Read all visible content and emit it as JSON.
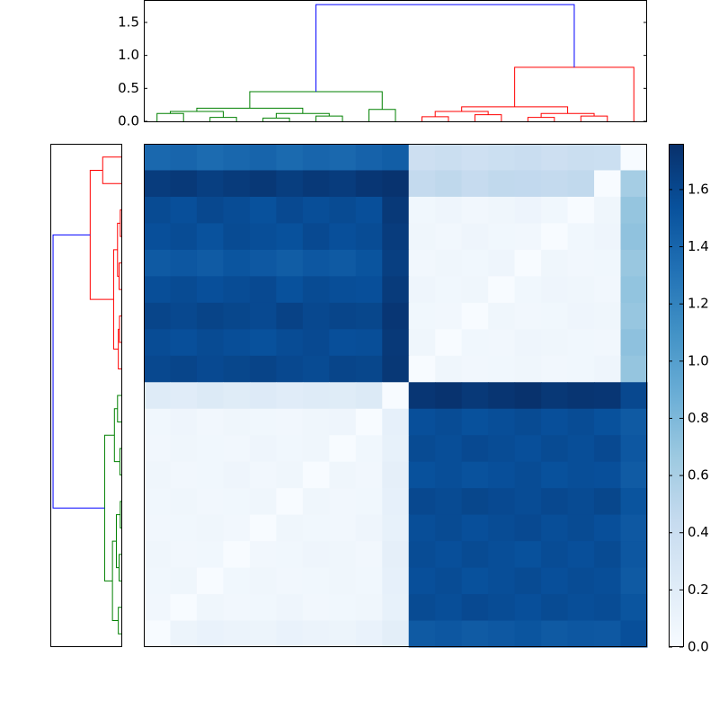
{
  "chart_data": [
    {
      "type": "dendrogram",
      "orientation": "top",
      "ylim": [
        0,
        1.84
      ],
      "yticks": [
        {
          "value": 0,
          "label": "0.0"
        },
        {
          "value": 0.5,
          "label": "0.5"
        },
        {
          "value": 1,
          "label": "1.0"
        },
        {
          "value": 1.5,
          "label": "1.5"
        }
      ],
      "links": [
        {
          "leaf": [
            0,
            0,
            1,
            1
          ],
          "height": [
            0,
            0.12,
            0.12,
            0
          ],
          "color": "#008000"
        },
        {
          "leaf": [
            2,
            2,
            3,
            3
          ],
          "height": [
            0,
            0.06,
            0.06,
            0
          ],
          "color": "#008000"
        },
        {
          "leaf": [
            0.5,
            0.5,
            2.5,
            2.5
          ],
          "height": [
            0.12,
            0.15,
            0.15,
            0.06
          ],
          "color": "#008000"
        },
        {
          "leaf": [
            4,
            4,
            5,
            5
          ],
          "height": [
            0,
            0.05,
            0.05,
            0
          ],
          "color": "#008000"
        },
        {
          "leaf": [
            6,
            6,
            7,
            7
          ],
          "height": [
            0,
            0.08,
            0.08,
            0
          ],
          "color": "#008000"
        },
        {
          "leaf": [
            4.5,
            4.5,
            6.5,
            6.5
          ],
          "height": [
            0.05,
            0.12,
            0.12,
            0.08
          ],
          "color": "#008000"
        },
        {
          "leaf": [
            1.5,
            1.5,
            5.5,
            5.5
          ],
          "height": [
            0.15,
            0.2,
            0.2,
            0.12
          ],
          "color": "#008000"
        },
        {
          "leaf": [
            8,
            8,
            9,
            9
          ],
          "height": [
            0,
            0.18,
            0.18,
            0
          ],
          "color": "#008000"
        },
        {
          "leaf": [
            3.5,
            3.5,
            8.5,
            8.5
          ],
          "height": [
            0.2,
            0.45,
            0.45,
            0.18
          ],
          "color": "#008000"
        },
        {
          "leaf": [
            10,
            10,
            11,
            11
          ],
          "height": [
            0,
            0.07,
            0.07,
            0
          ],
          "color": "#ff0000"
        },
        {
          "leaf": [
            12,
            12,
            13,
            13
          ],
          "height": [
            0,
            0.1,
            0.1,
            0
          ],
          "color": "#ff0000"
        },
        {
          "leaf": [
            10.5,
            10.5,
            12.5,
            12.5
          ],
          "height": [
            0.07,
            0.15,
            0.15,
            0.1
          ],
          "color": "#ff0000"
        },
        {
          "leaf": [
            14,
            14,
            15,
            15
          ],
          "height": [
            0,
            0.06,
            0.06,
            0
          ],
          "color": "#ff0000"
        },
        {
          "leaf": [
            16,
            16,
            17,
            17
          ],
          "height": [
            0,
            0.08,
            0.08,
            0
          ],
          "color": "#ff0000"
        },
        {
          "leaf": [
            14.5,
            14.5,
            16.5,
            16.5
          ],
          "height": [
            0.06,
            0.12,
            0.12,
            0.08
          ],
          "color": "#ff0000"
        },
        {
          "leaf": [
            11.5,
            11.5,
            15.5,
            15.5
          ],
          "height": [
            0.15,
            0.22,
            0.22,
            0.12
          ],
          "color": "#ff0000"
        },
        {
          "leaf": [
            13.5,
            13.5,
            18,
            18
          ],
          "height": [
            0.22,
            0.82,
            0.82,
            0
          ],
          "color": "#ff0000"
        },
        {
          "leaf": [
            6,
            6,
            15.75,
            15.75
          ],
          "height": [
            0.45,
            1.77,
            1.77,
            0.82
          ],
          "color": "#0000ff"
        }
      ]
    },
    {
      "type": "dendrogram",
      "orientation": "left",
      "xlim": [
        0,
        1.84
      ],
      "links": [
        {
          "leaf": [
            0,
            0,
            1,
            1
          ],
          "height": [
            0,
            0.5,
            0.5,
            0
          ],
          "color": "#ff0000"
        },
        {
          "leaf": [
            2,
            2,
            3,
            3
          ],
          "height": [
            0,
            0.05,
            0.05,
            0
          ],
          "color": "#ff0000"
        },
        {
          "leaf": [
            4,
            4,
            5,
            5
          ],
          "height": [
            0,
            0.08,
            0.08,
            0
          ],
          "color": "#ff0000"
        },
        {
          "leaf": [
            2.5,
            2.5,
            4.5,
            4.5
          ],
          "height": [
            0.05,
            0.12,
            0.12,
            0.08
          ],
          "color": "#ff0000"
        },
        {
          "leaf": [
            6,
            6,
            7,
            7
          ],
          "height": [
            0,
            0.07,
            0.07,
            0
          ],
          "color": "#ff0000"
        },
        {
          "leaf": [
            6.5,
            6.5,
            8,
            8
          ],
          "height": [
            0.07,
            0.1,
            0.1,
            0
          ],
          "color": "#ff0000"
        },
        {
          "leaf": [
            3.5,
            3.5,
            7.25,
            7.25
          ],
          "height": [
            0.12,
            0.22,
            0.22,
            0.1
          ],
          "color": "#ff0000"
        },
        {
          "leaf": [
            0.5,
            0.5,
            5.375,
            5.375
          ],
          "height": [
            0.5,
            0.82,
            0.82,
            0.22
          ],
          "color": "#ff0000"
        },
        {
          "leaf": [
            9,
            9,
            10,
            10
          ],
          "height": [
            0,
            0.12,
            0.12,
            0
          ],
          "color": "#008000"
        },
        {
          "leaf": [
            11,
            11,
            12,
            12
          ],
          "height": [
            0,
            0.06,
            0.06,
            0
          ],
          "color": "#008000"
        },
        {
          "leaf": [
            9.5,
            9.5,
            11.5,
            11.5
          ],
          "height": [
            0.12,
            0.2,
            0.2,
            0.06
          ],
          "color": "#008000"
        },
        {
          "leaf": [
            13,
            13,
            14,
            14
          ],
          "height": [
            0,
            0.05,
            0.05,
            0
          ],
          "color": "#008000"
        },
        {
          "leaf": [
            15,
            15,
            16,
            16
          ],
          "height": [
            0,
            0.08,
            0.08,
            0
          ],
          "color": "#008000"
        },
        {
          "leaf": [
            13.5,
            13.5,
            15.5,
            15.5
          ],
          "height": [
            0.05,
            0.15,
            0.15,
            0.08
          ],
          "color": "#008000"
        },
        {
          "leaf": [
            17,
            17,
            18,
            18
          ],
          "height": [
            0,
            0.1,
            0.1,
            0
          ],
          "color": "#008000"
        },
        {
          "leaf": [
            14.5,
            14.5,
            17.5,
            17.5
          ],
          "height": [
            0.15,
            0.25,
            0.25,
            0.1
          ],
          "color": "#008000"
        },
        {
          "leaf": [
            10.5,
            10.5,
            16,
            16
          ],
          "height": [
            0.2,
            0.45,
            0.45,
            0.25
          ],
          "color": "#008000"
        },
        {
          "leaf": [
            2.9375,
            2.9375,
            13.25,
            13.25
          ],
          "height": [
            0.82,
            1.77,
            1.77,
            0.45
          ],
          "color": "#0000ff"
        }
      ]
    },
    {
      "type": "heatmap",
      "clim": [
        0,
        1.76
      ],
      "cticks": [
        {
          "value": 0,
          "label": "0.0"
        },
        {
          "value": 0.2,
          "label": "0.2"
        },
        {
          "value": 0.4,
          "label": "0.4"
        },
        {
          "value": 0.6,
          "label": "0.6"
        },
        {
          "value": 0.8,
          "label": "0.8"
        },
        {
          "value": 1,
          "label": "1.0"
        },
        {
          "value": 1.2,
          "label": "1.2"
        },
        {
          "value": 1.4,
          "label": "1.4"
        },
        {
          "value": 1.6,
          "label": "1.6"
        }
      ],
      "colors": [
        "#f7fbff",
        "#deebf7",
        "#c6dbef",
        "#9ecae1",
        "#6baed6",
        "#4292c6",
        "#2171b5",
        "#08519c",
        "#08306b"
      ],
      "z": [
        [
          1.38,
          1.4,
          1.36,
          1.39,
          1.41,
          1.37,
          1.4,
          1.38,
          1.42,
          1.45,
          0.38,
          0.4,
          0.37,
          0.39,
          0.41,
          0.38,
          0.4,
          0.39,
          0.0
        ],
        [
          1.68,
          1.7,
          1.66,
          1.69,
          1.71,
          1.67,
          1.7,
          1.68,
          1.72,
          1.74,
          0.45,
          0.48,
          0.44,
          0.47,
          0.46,
          0.45,
          0.47,
          0.0,
          0.62
        ],
        [
          1.58,
          1.55,
          1.6,
          1.57,
          1.54,
          1.59,
          1.56,
          1.58,
          1.55,
          1.7,
          0.06,
          0.08,
          0.05,
          0.07,
          0.09,
          0.06,
          0.0,
          0.07,
          0.7
        ],
        [
          1.55,
          1.57,
          1.53,
          1.58,
          1.56,
          1.54,
          1.59,
          1.55,
          1.57,
          1.68,
          0.07,
          0.05,
          0.08,
          0.06,
          0.05,
          0.0,
          0.06,
          0.08,
          0.72
        ],
        [
          1.48,
          1.5,
          1.47,
          1.51,
          1.49,
          1.46,
          1.5,
          1.48,
          1.52,
          1.66,
          0.05,
          0.07,
          0.06,
          0.08,
          0.0,
          0.07,
          0.05,
          0.06,
          0.68
        ],
        [
          1.56,
          1.58,
          1.55,
          1.57,
          1.59,
          1.54,
          1.58,
          1.56,
          1.55,
          1.69,
          0.08,
          0.06,
          0.07,
          0.0,
          0.06,
          0.08,
          0.07,
          0.05,
          0.71
        ],
        [
          1.62,
          1.6,
          1.63,
          1.61,
          1.59,
          1.64,
          1.6,
          1.62,
          1.61,
          1.72,
          0.06,
          0.05,
          0.0,
          0.07,
          0.05,
          0.06,
          0.08,
          0.07,
          0.69
        ],
        [
          1.57,
          1.55,
          1.58,
          1.56,
          1.54,
          1.57,
          1.59,
          1.55,
          1.56,
          1.7,
          0.07,
          0.0,
          0.06,
          0.05,
          0.08,
          0.07,
          0.06,
          0.05,
          0.73
        ],
        [
          1.6,
          1.62,
          1.59,
          1.61,
          1.63,
          1.6,
          1.58,
          1.62,
          1.61,
          1.71,
          0.0,
          0.07,
          0.05,
          0.06,
          0.07,
          0.05,
          0.06,
          0.08,
          0.7
        ],
        [
          0.22,
          0.2,
          0.24,
          0.21,
          0.23,
          0.2,
          0.22,
          0.21,
          0.24,
          0.0,
          1.72,
          1.74,
          1.7,
          1.73,
          1.75,
          1.71,
          1.73,
          1.72,
          1.6
        ],
        [
          0.06,
          0.08,
          0.05,
          0.07,
          0.06,
          0.05,
          0.07,
          0.08,
          0.0,
          0.15,
          1.55,
          1.57,
          1.54,
          1.56,
          1.58,
          1.55,
          1.57,
          1.54,
          1.48
        ],
        [
          0.05,
          0.07,
          0.06,
          0.05,
          0.08,
          0.06,
          0.07,
          0.0,
          0.06,
          0.14,
          1.58,
          1.56,
          1.59,
          1.57,
          1.55,
          1.58,
          1.56,
          1.59,
          1.5
        ],
        [
          0.07,
          0.05,
          0.06,
          0.08,
          0.05,
          0.07,
          0.0,
          0.07,
          0.05,
          0.16,
          1.54,
          1.56,
          1.53,
          1.55,
          1.57,
          1.54,
          1.56,
          1.55,
          1.47
        ],
        [
          0.06,
          0.07,
          0.05,
          0.06,
          0.07,
          0.0,
          0.07,
          0.05,
          0.06,
          0.15,
          1.6,
          1.58,
          1.61,
          1.59,
          1.57,
          1.6,
          1.58,
          1.61,
          1.52
        ],
        [
          0.05,
          0.06,
          0.07,
          0.05,
          0.0,
          0.07,
          0.06,
          0.05,
          0.08,
          0.14,
          1.56,
          1.58,
          1.55,
          1.57,
          1.59,
          1.56,
          1.58,
          1.55,
          1.49
        ],
        [
          0.07,
          0.05,
          0.06,
          0.0,
          0.05,
          0.06,
          0.08,
          0.07,
          0.05,
          0.16,
          1.57,
          1.55,
          1.58,
          1.56,
          1.54,
          1.57,
          1.55,
          1.58,
          1.5
        ],
        [
          0.06,
          0.07,
          0.0,
          0.06,
          0.07,
          0.05,
          0.06,
          0.07,
          0.06,
          0.15,
          1.55,
          1.57,
          1.54,
          1.56,
          1.58,
          1.55,
          1.57,
          1.56,
          1.48
        ],
        [
          0.05,
          0.0,
          0.07,
          0.05,
          0.06,
          0.08,
          0.05,
          0.06,
          0.07,
          0.14,
          1.58,
          1.56,
          1.59,
          1.57,
          1.55,
          1.58,
          1.56,
          1.57,
          1.51
        ],
        [
          0.0,
          0.1,
          0.12,
          0.11,
          0.1,
          0.12,
          0.11,
          0.1,
          0.12,
          0.18,
          1.48,
          1.5,
          1.47,
          1.49,
          1.51,
          1.48,
          1.5,
          1.49,
          1.55
        ]
      ]
    }
  ]
}
